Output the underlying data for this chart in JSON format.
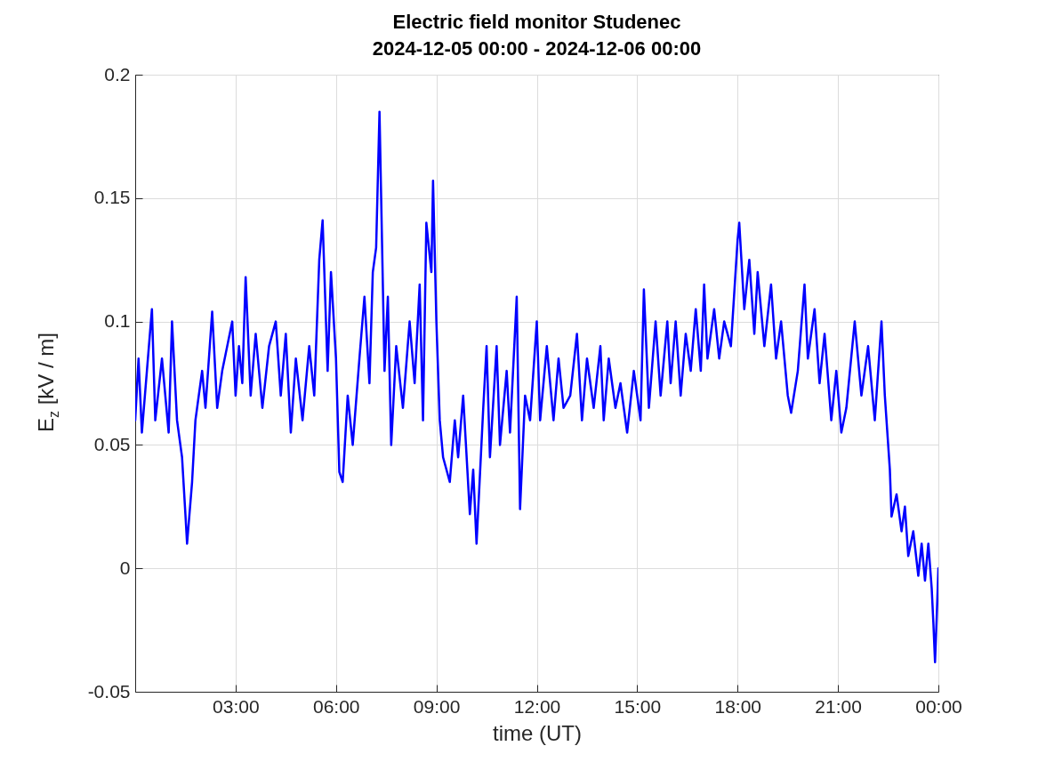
{
  "chart_data": {
    "type": "line",
    "title": [
      "Electric field monitor Studenec",
      "2024-12-05 00:00 - 2024-12-06 00:00"
    ],
    "xlabel": "time (UT)",
    "ylabel": "E$_{z}$ [kV / m]",
    "x": [
      0,
      0.1,
      0.2,
      0.35,
      0.5,
      0.6,
      0.8,
      1.0,
      1.1,
      1.25,
      1.4,
      1.5,
      1.55,
      1.7,
      1.8,
      2.0,
      2.1,
      2.3,
      2.45,
      2.6,
      2.9,
      3.0,
      3.1,
      3.2,
      3.3,
      3.45,
      3.6,
      3.8,
      4.0,
      4.2,
      4.35,
      4.5,
      4.65,
      4.8,
      5.0,
      5.2,
      5.35,
      5.5,
      5.6,
      5.75,
      5.85,
      6.0,
      6.1,
      6.2,
      6.35,
      6.5,
      6.7,
      6.85,
      7.0,
      7.1,
      7.2,
      7.3,
      7.35,
      7.45,
      7.55,
      7.65,
      7.8,
      8.0,
      8.2,
      8.35,
      8.5,
      8.6,
      8.7,
      8.85,
      8.9,
      9.0,
      9.1,
      9.2,
      9.4,
      9.55,
      9.65,
      9.8,
      10.0,
      10.1,
      10.2,
      10.4,
      10.5,
      10.6,
      10.8,
      10.9,
      11.1,
      11.2,
      11.4,
      11.5,
      11.65,
      11.8,
      12.0,
      12.1,
      12.3,
      12.5,
      12.65,
      12.8,
      13.0,
      13.2,
      13.35,
      13.5,
      13.7,
      13.9,
      14.0,
      14.15,
      14.35,
      14.5,
      14.7,
      14.9,
      15.1,
      15.2,
      15.35,
      15.55,
      15.7,
      15.9,
      16.0,
      16.15,
      16.3,
      16.45,
      16.6,
      16.75,
      16.9,
      17.0,
      17.1,
      17.3,
      17.45,
      17.6,
      17.8,
      18.0,
      18.05,
      18.2,
      18.35,
      18.5,
      18.6,
      18.8,
      19.0,
      19.15,
      19.3,
      19.5,
      19.6,
      19.8,
      20.0,
      20.1,
      20.3,
      20.45,
      20.6,
      20.8,
      20.95,
      21.1,
      21.25,
      21.5,
      21.7,
      21.9,
      22.1,
      22.3,
      22.4,
      22.55,
      22.6,
      22.75,
      22.9,
      23.0,
      23.1,
      23.25,
      23.4,
      23.5,
      23.6,
      23.7,
      23.8,
      23.85,
      23.9,
      23.95,
      24.0
    ],
    "series": [
      {
        "color": "#0000ff",
        "values": [
          0.06,
          0.085,
          0.055,
          0.08,
          0.105,
          0.06,
          0.085,
          0.055,
          0.1,
          0.06,
          0.045,
          0.022,
          0.01,
          0.035,
          0.06,
          0.08,
          0.065,
          0.104,
          0.065,
          0.08,
          0.1,
          0.07,
          0.09,
          0.075,
          0.118,
          0.07,
          0.095,
          0.065,
          0.09,
          0.1,
          0.07,
          0.095,
          0.055,
          0.085,
          0.06,
          0.09,
          0.07,
          0.125,
          0.141,
          0.08,
          0.12,
          0.085,
          0.039,
          0.035,
          0.07,
          0.05,
          0.085,
          0.11,
          0.075,
          0.12,
          0.13,
          0.185,
          0.15,
          0.08,
          0.11,
          0.05,
          0.09,
          0.065,
          0.1,
          0.075,
          0.115,
          0.06,
          0.14,
          0.12,
          0.157,
          0.1,
          0.06,
          0.045,
          0.035,
          0.06,
          0.045,
          0.07,
          0.022,
          0.04,
          0.01,
          0.065,
          0.09,
          0.045,
          0.09,
          0.05,
          0.08,
          0.055,
          0.11,
          0.024,
          0.07,
          0.06,
          0.1,
          0.06,
          0.09,
          0.06,
          0.085,
          0.065,
          0.07,
          0.095,
          0.06,
          0.085,
          0.065,
          0.09,
          0.06,
          0.085,
          0.065,
          0.075,
          0.055,
          0.08,
          0.06,
          0.113,
          0.065,
          0.1,
          0.07,
          0.1,
          0.075,
          0.1,
          0.07,
          0.095,
          0.08,
          0.105,
          0.08,
          0.115,
          0.085,
          0.105,
          0.085,
          0.1,
          0.09,
          0.133,
          0.14,
          0.105,
          0.125,
          0.095,
          0.12,
          0.09,
          0.115,
          0.085,
          0.1,
          0.07,
          0.063,
          0.08,
          0.115,
          0.085,
          0.105,
          0.075,
          0.095,
          0.06,
          0.08,
          0.055,
          0.065,
          0.1,
          0.07,
          0.09,
          0.06,
          0.1,
          0.07,
          0.04,
          0.021,
          0.03,
          0.015,
          0.025,
          0.005,
          0.015,
          -0.003,
          0.01,
          -0.005,
          0.01,
          -0.008,
          -0.022,
          -0.038,
          -0.02,
          0
        ]
      }
    ],
    "xlim": [
      0,
      24
    ],
    "xticks": [
      {
        "value": 3,
        "label": "03:00"
      },
      {
        "value": 6,
        "label": "06:00"
      },
      {
        "value": 9,
        "label": "09:00"
      },
      {
        "value": 12,
        "label": "12:00"
      },
      {
        "value": 15,
        "label": "15:00"
      },
      {
        "value": 18,
        "label": "18:00"
      },
      {
        "value": 21,
        "label": "21:00"
      },
      {
        "value": 24,
        "label": "00:00"
      }
    ],
    "ylim": [
      -0.05,
      0.2
    ],
    "yticks": [
      -0.05,
      0,
      0.05,
      0.1,
      0.15,
      0.2
    ],
    "grid": true,
    "line_style": "solid"
  }
}
